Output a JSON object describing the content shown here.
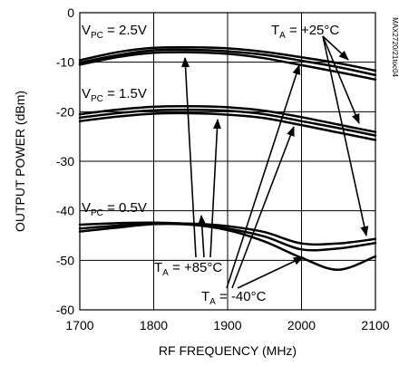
{
  "chart_data": {
    "type": "line",
    "xlabel": "RF FREQUENCY (MHz)",
    "ylabel": "OUTPUT POWER (dBm)",
    "xlim": [
      1700,
      2100
    ],
    "ylim": [
      -60,
      0
    ],
    "x_ticks": [
      1700,
      1800,
      1900,
      2000,
      2100
    ],
    "y_ticks": [
      0,
      -10,
      -20,
      -30,
      -40,
      -50,
      -60
    ],
    "grid": true,
    "reference": "MAX2720/21toc04",
    "annotations": {
      "vpc25": {
        "main": "V",
        "sub": "PC",
        "rest": " = 2.5V"
      },
      "vpc15": {
        "main": "V",
        "sub": "PC",
        "rest": " = 1.5V"
      },
      "vpc05": {
        "main": "V",
        "sub": "PC",
        "rest": " = 0.5V"
      },
      "ta25": {
        "main": "T",
        "sub": "A",
        "rest": " = +25°C"
      },
      "ta85": {
        "main": "T",
        "sub": "A",
        "rest": " = +85°C"
      },
      "tam40": {
        "main": "T",
        "sub": "A",
        "rest": " = -40°C"
      }
    },
    "series": [
      {
        "group": "2.5V",
        "x": [
          1700,
          1750,
          1800,
          1850,
          1900,
          1950,
          2000,
          2050,
          2100
        ],
        "y": [
          -9.6,
          -8.0,
          -7.1,
          -7.0,
          -7.2,
          -7.9,
          -9.0,
          -10.2,
          -11.7
        ]
      },
      {
        "group": "2.5V",
        "x": [
          1700,
          1750,
          1800,
          1850,
          1900,
          1950,
          2000,
          2050,
          2100
        ],
        "y": [
          -10.1,
          -8.6,
          -7.6,
          -7.5,
          -7.8,
          -8.5,
          -9.7,
          -11.0,
          -12.6
        ]
      },
      {
        "group": "2.5V",
        "x": [
          1700,
          1750,
          1800,
          1850,
          1900,
          1950,
          2000,
          2050,
          2100
        ],
        "y": [
          -10.5,
          -9.0,
          -8.1,
          -8.0,
          -8.3,
          -9.2,
          -10.6,
          -12.0,
          -13.5
        ]
      },
      {
        "group": "1.5V",
        "x": [
          1700,
          1750,
          1800,
          1850,
          1900,
          1950,
          2000,
          2050,
          2100
        ],
        "y": [
          -20.5,
          -19.6,
          -19.0,
          -18.9,
          -19.1,
          -19.8,
          -21.1,
          -22.6,
          -24.1
        ]
      },
      {
        "group": "1.5V",
        "x": [
          1700,
          1750,
          1800,
          1850,
          1900,
          1950,
          2000,
          2050,
          2100
        ],
        "y": [
          -21.2,
          -20.3,
          -19.7,
          -19.6,
          -19.8,
          -20.5,
          -21.9,
          -23.3,
          -24.8
        ]
      },
      {
        "group": "1.5V",
        "x": [
          1700,
          1750,
          1800,
          1850,
          1900,
          1950,
          2000,
          2050,
          2100
        ],
        "y": [
          -21.9,
          -21.0,
          -20.4,
          -20.3,
          -20.6,
          -21.3,
          -22.7,
          -24.2,
          -25.7
        ]
      },
      {
        "group": "0.5V",
        "x": [
          1700,
          1750,
          1800,
          1850,
          1900,
          1950,
          2000,
          2050,
          2100
        ],
        "y": [
          -42.8,
          -42.5,
          -42.4,
          -42.7,
          -43.6,
          -45.2,
          -47.8,
          -47.6,
          -46.5
        ]
      },
      {
        "group": "0.5V",
        "x": [
          1700,
          1750,
          1800,
          1850,
          1900,
          1950,
          2000,
          2050,
          2100
        ],
        "y": [
          -43.6,
          -43.0,
          -42.6,
          -42.6,
          -43.1,
          -44.3,
          -46.6,
          -46.6,
          -45.7
        ]
      },
      {
        "group": "0.5V",
        "x": [
          1700,
          1750,
          1800,
          1850,
          1900,
          1950,
          2000,
          2050,
          2100
        ],
        "y": [
          -44.2,
          -43.4,
          -42.7,
          -42.8,
          -43.9,
          -46.2,
          -49.5,
          -51.9,
          -49.2
        ]
      }
    ]
  }
}
